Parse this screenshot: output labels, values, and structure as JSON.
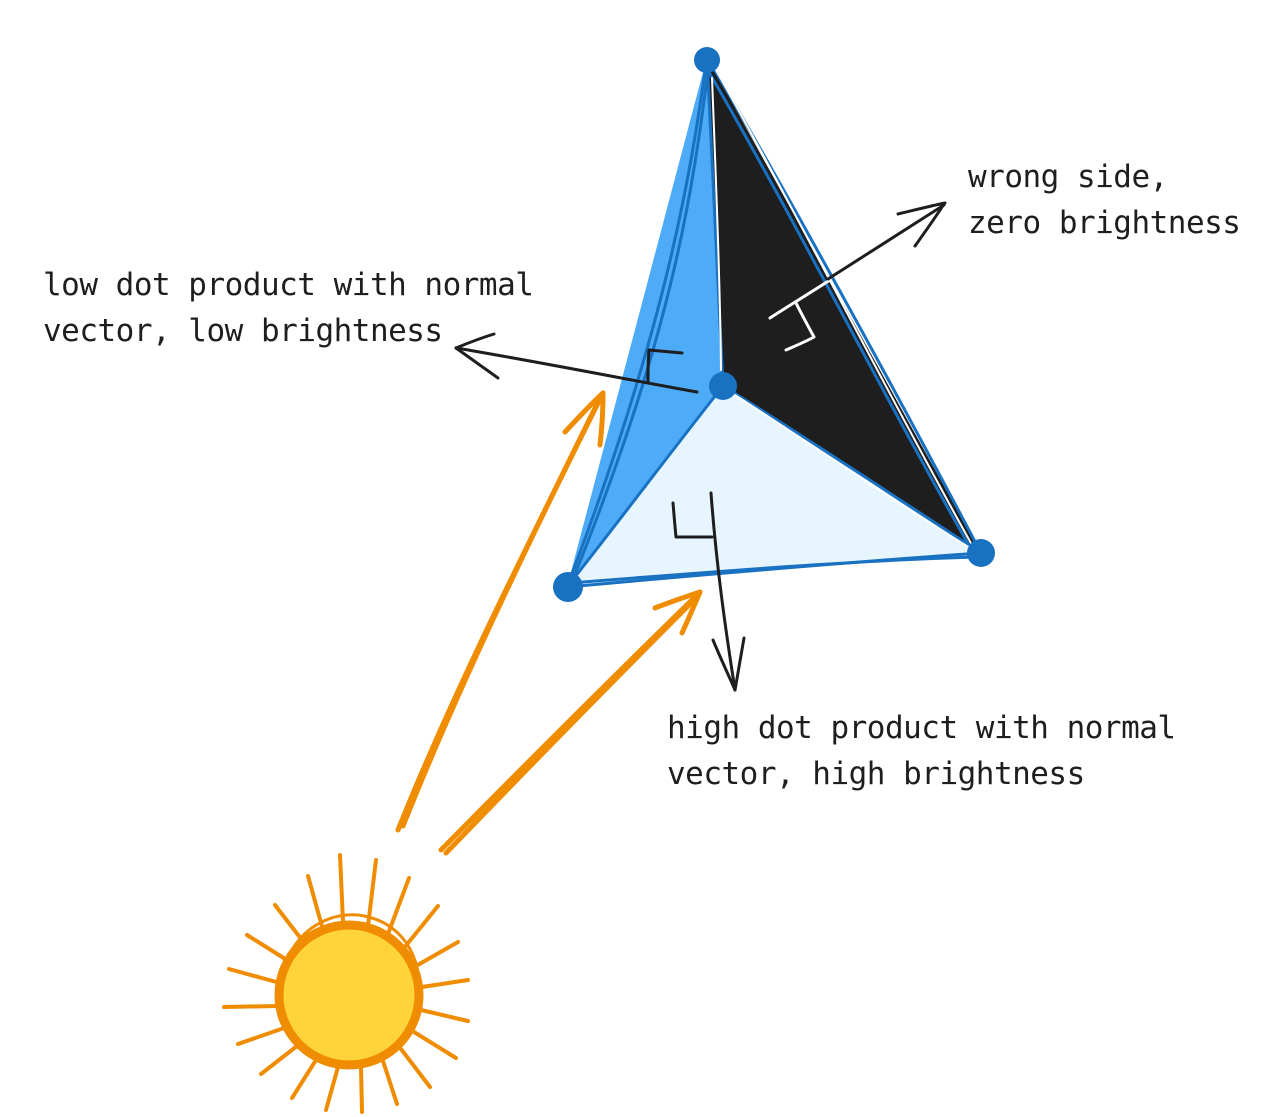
{
  "labels": {
    "wrong_side": [
      "wrong side,",
      "zero brightness"
    ],
    "low_dot": [
      "low dot product with normal",
      "vector, low brightness"
    ],
    "high_dot": [
      "high dot product with normal",
      "vector, high brightness"
    ]
  },
  "colors": {
    "left_face": "#4dabf7",
    "bottom_face": "#e7f5ff",
    "dark_face": "#1e1e1e",
    "edge": "#1971c2",
    "light_ray": "#f08c00",
    "sun_fill": "#ffd43b",
    "sun_outline": "#f08c00",
    "ink": "#1e1e1e",
    "white_ink": "#ffffff"
  },
  "icons": {
    "sun": "sun-icon"
  }
}
